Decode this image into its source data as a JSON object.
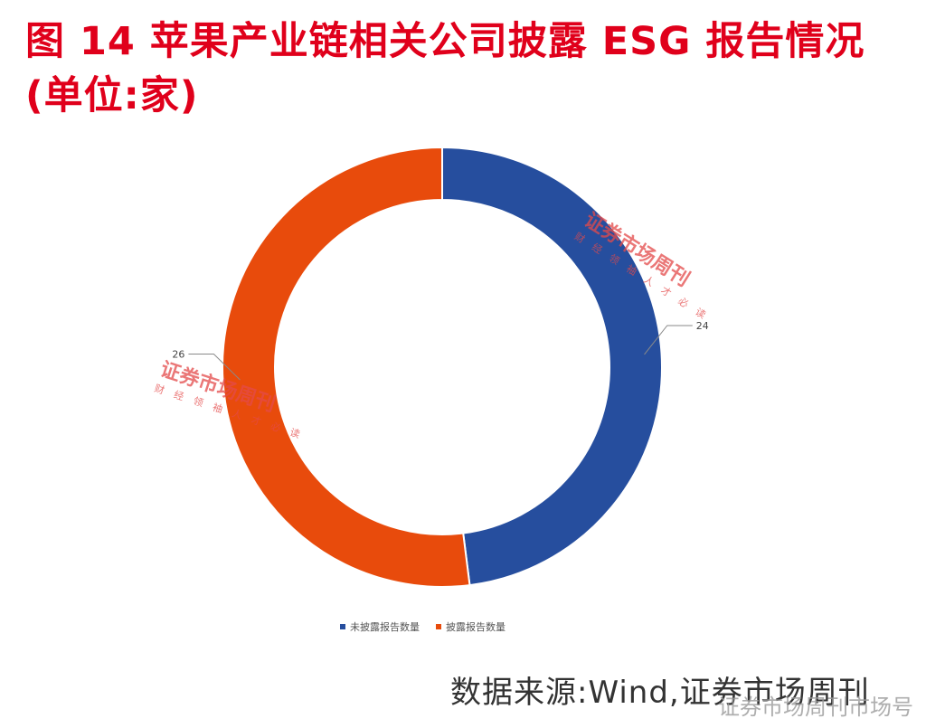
{
  "title": "图 14  苹果产业链相关公司披露 ESG 报告情况(单位:家)",
  "source": "数据来源:Wind,证券市场周刊",
  "watermark": "证券市场周刊市场号",
  "stamps": [
    "证券市场周刊",
    "证券市场周刊"
  ],
  "stamp_subs": [
    "财 经 领 袖 人 才 必 读",
    "财 经 领 袖 人 才 必 读"
  ],
  "chart_data": {
    "type": "pie",
    "donut": true,
    "categories": [
      "未披露报告数量",
      "披露报告数量"
    ],
    "values": [
      24,
      26
    ],
    "colors": [
      "#264e9e",
      "#e84b0c"
    ],
    "data_labels": [
      "24",
      "26"
    ],
    "legend": "bottom"
  }
}
